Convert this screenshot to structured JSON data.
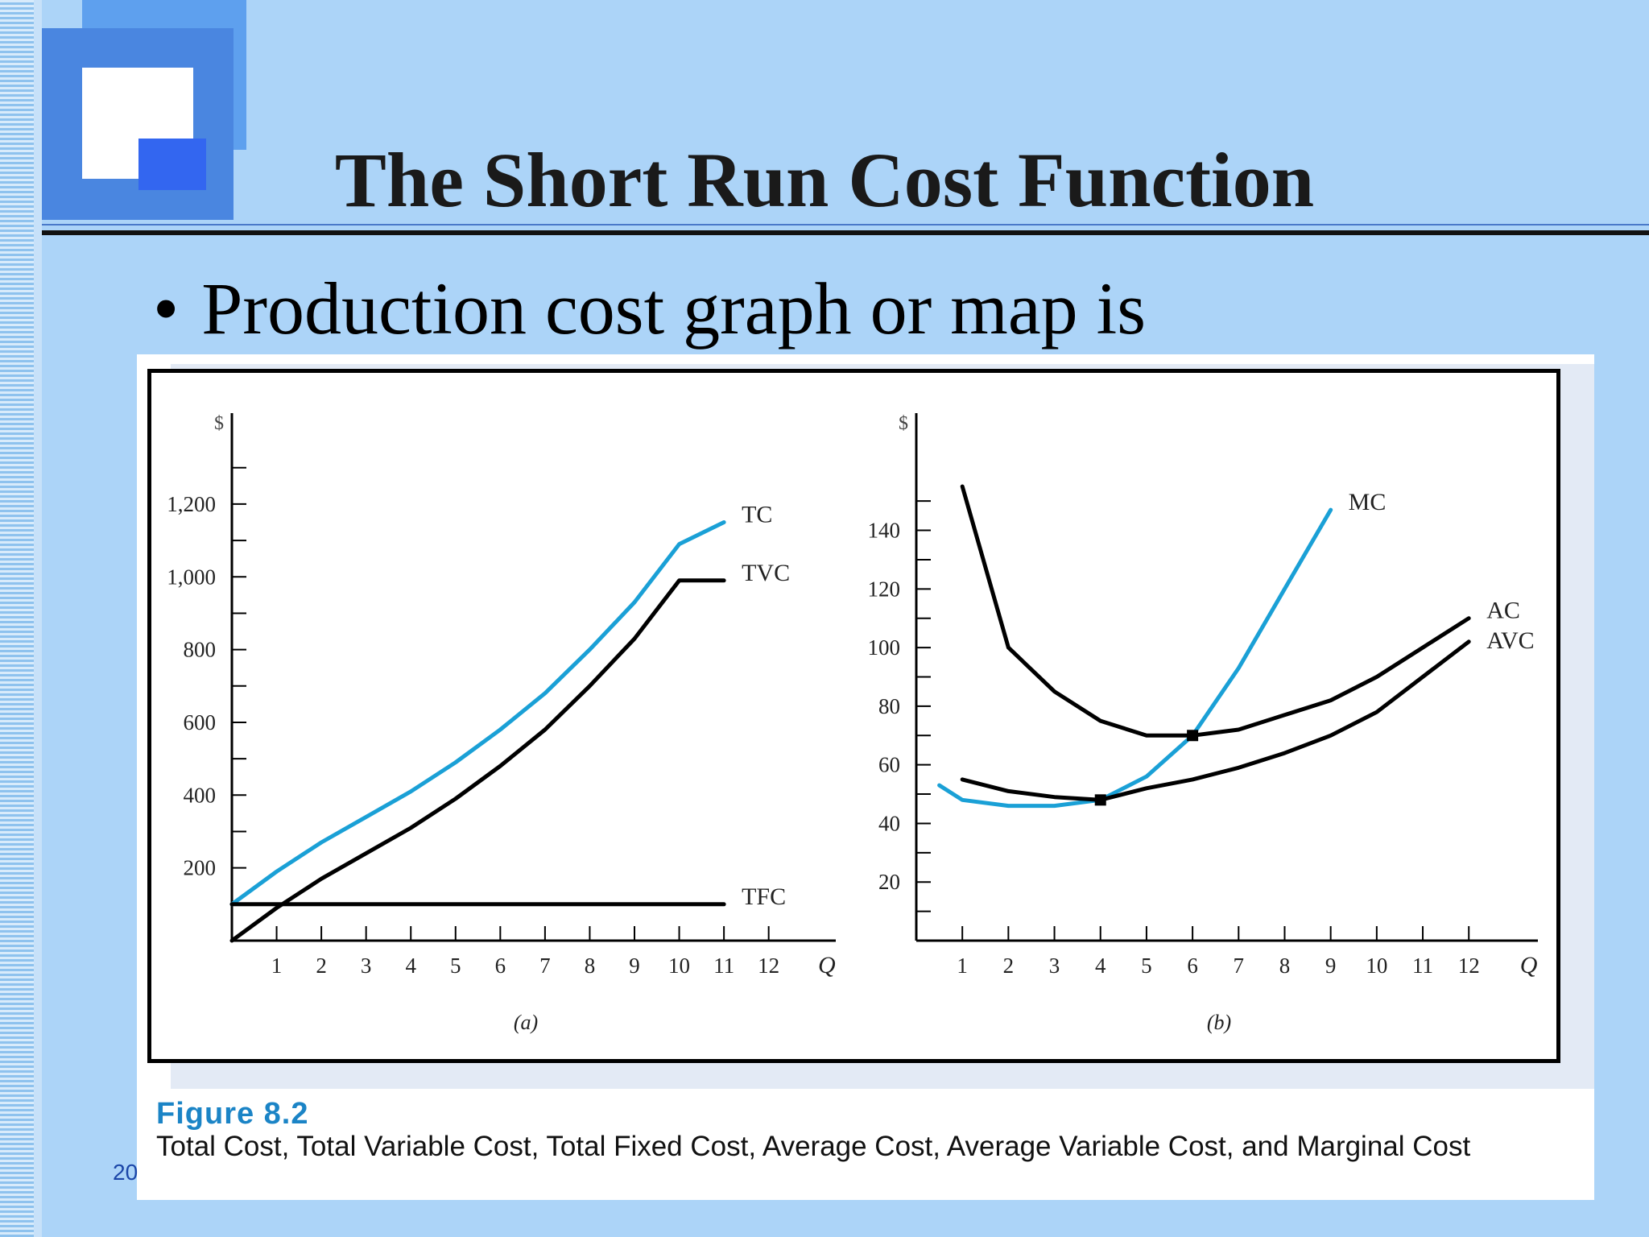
{
  "slide": {
    "title": "The Short Run Cost Function",
    "bullet": "Production cost graph or map is",
    "slide_number": "20"
  },
  "figure": {
    "number": "Figure 8.2",
    "caption": "Total Cost, Total Variable Cost, Total Fixed Cost, Average Cost, Average Variable Cost, and Marginal Cost"
  },
  "colors": {
    "accent": "#1aa0d6",
    "curve": "#000000",
    "background": "#acd4f8"
  },
  "chart_data": [
    {
      "type": "line",
      "panel_label": "(a)",
      "ylabel": "$",
      "xlabel": "Q",
      "x_ticks": [
        1,
        2,
        3,
        4,
        5,
        6,
        7,
        8,
        9,
        10,
        11,
        12
      ],
      "y_ticks": [
        200,
        400,
        600,
        800,
        "1,000",
        "1,200"
      ],
      "xlim": [
        0,
        13.5
      ],
      "ylim": [
        0,
        1450
      ],
      "series": [
        {
          "name": "TC",
          "color": "#1aa0d6",
          "x": [
            0,
            1,
            2,
            3,
            4,
            5,
            6,
            7,
            8,
            9,
            10,
            11
          ],
          "y": [
            100,
            190,
            270,
            340,
            410,
            490,
            580,
            680,
            800,
            930,
            1090,
            1150
          ]
        },
        {
          "name": "TVC",
          "color": "#000000",
          "x": [
            0,
            1,
            2,
            3,
            4,
            5,
            6,
            7,
            8,
            9,
            10,
            11
          ],
          "y": [
            0,
            90,
            170,
            240,
            310,
            390,
            480,
            580,
            700,
            830,
            990,
            990
          ]
        },
        {
          "name": "TFC",
          "color": "#000000",
          "x": [
            0,
            11
          ],
          "y": [
            100,
            100
          ]
        }
      ]
    },
    {
      "type": "line",
      "panel_label": "(b)",
      "ylabel": "$",
      "xlabel": "Q",
      "x_ticks": [
        1,
        2,
        3,
        4,
        5,
        6,
        7,
        8,
        9,
        10,
        11,
        12
      ],
      "y_ticks": [
        20,
        40,
        60,
        80,
        100,
        120,
        140
      ],
      "xlim": [
        0,
        13.5
      ],
      "ylim": [
        0,
        180
      ],
      "series": [
        {
          "name": "MC",
          "color": "#1aa0d6",
          "x": [
            0.5,
            1,
            2,
            3,
            4,
            5,
            6,
            7,
            8,
            9
          ],
          "y": [
            53,
            48,
            46,
            46,
            48,
            56,
            70,
            93,
            120,
            147
          ]
        },
        {
          "name": "AC",
          "color": "#000000",
          "x": [
            1,
            2,
            3,
            4,
            5,
            6,
            7,
            8,
            9,
            10,
            11,
            12
          ],
          "y": [
            155,
            100,
            85,
            75,
            70,
            70,
            72,
            77,
            82,
            90,
            100,
            110
          ]
        },
        {
          "name": "AVC",
          "color": "#000000",
          "x": [
            1,
            2,
            3,
            4,
            5,
            6,
            7,
            8,
            9,
            10,
            11,
            12
          ],
          "y": [
            55,
            51,
            49,
            48,
            52,
            55,
            59,
            64,
            70,
            78,
            90,
            102
          ]
        }
      ],
      "markers": [
        {
          "x": 4,
          "y": 48
        },
        {
          "x": 6,
          "y": 70
        }
      ]
    }
  ]
}
